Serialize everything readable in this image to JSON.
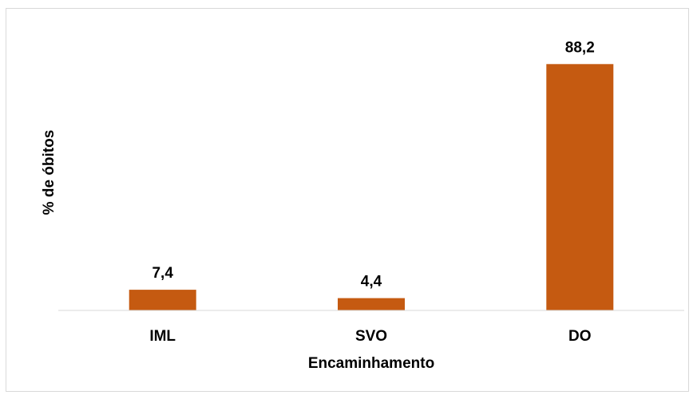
{
  "chart_data": {
    "type": "bar",
    "categories": [
      "IML",
      "SVO",
      "DO"
    ],
    "values": [
      7.4,
      4.4,
      88.2
    ],
    "data_labels": [
      "7,4",
      "4,4",
      "88,2"
    ],
    "xlabel": "Encaminhamento",
    "ylabel": "% de óbitos",
    "ylim": [
      0,
      100
    ],
    "grid": false,
    "legend": "none",
    "bar_color": "#C55A11",
    "axis_color": "#d9d9d9"
  }
}
